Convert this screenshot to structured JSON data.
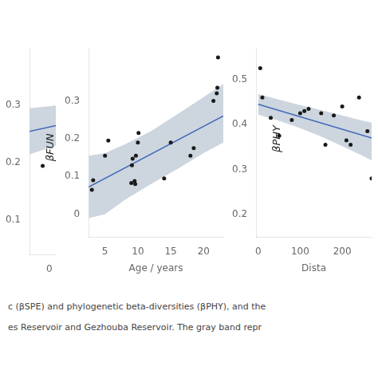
{
  "chart_data": [
    {
      "type": "scatter",
      "xlim": [
        -1.5,
        0.5
      ],
      "ylim": [
        0.04,
        0.4
      ],
      "xticks": [
        0
      ],
      "yticks": [
        0.1,
        0.2,
        0.3
      ],
      "grid": false,
      "annotations": [
        "βFUN"
      ],
      "series": [
        {
          "type": "scatter",
          "color": "#1a1a1a",
          "x": [
            -0.5
          ],
          "values": [
            0.195
          ]
        },
        {
          "type": "line",
          "color": "#4169b8",
          "x": [
            -1.5,
            0.5
          ],
          "values": [
            0.255,
            0.265
          ]
        },
        {
          "type": "band",
          "color": "#c8d2dc",
          "x": [
            -1.5,
            0.5
          ],
          "lower": [
            0.215,
            0.23
          ],
          "upper": [
            0.295,
            0.3
          ]
        }
      ]
    },
    {
      "type": "scatter",
      "xlabel": "Age / years",
      "xlim": [
        2.5,
        23
      ],
      "ylim": [
        -0.06,
        0.44
      ],
      "xticks": [
        5,
        10,
        15,
        20
      ],
      "yticks": [
        0,
        0.1,
        0.2,
        0.3
      ],
      "grid": false,
      "series": [
        {
          "type": "scatter",
          "color": "#1a1a1a",
          "x": [
            3.0,
            3.2,
            5.0,
            5.5,
            9.0,
            9.1,
            9.2,
            9.5,
            9.6,
            9.7,
            10.0,
            10.1,
            14.0,
            15.0,
            18.0,
            18.5,
            21.5,
            22.0,
            22.1,
            22.2
          ],
          "values": [
            0.065,
            0.09,
            0.155,
            0.195,
            0.083,
            0.13,
            0.147,
            0.088,
            0.08,
            0.155,
            0.19,
            0.215,
            0.095,
            0.19,
            0.155,
            0.175,
            0.3,
            0.32,
            0.335,
            0.415
          ]
        },
        {
          "type": "line",
          "color": "#4169b8",
          "x": [
            2.5,
            23
          ],
          "values": [
            0.072,
            0.26
          ]
        },
        {
          "type": "band",
          "color": "#c8d2dc",
          "x": [
            2.5,
            5,
            8,
            12,
            16,
            20,
            23
          ],
          "lower": [
            -0.01,
            0.0,
            0.038,
            0.08,
            0.12,
            0.162,
            0.19
          ],
          "upper": [
            0.155,
            0.162,
            0.185,
            0.22,
            0.265,
            0.31,
            0.345
          ]
        }
      ]
    },
    {
      "type": "scatter",
      "xlabel": "Dista",
      "xlim": [
        -5,
        270
      ],
      "ylim": [
        0.15,
        0.57
      ],
      "xticks": [
        0,
        100,
        200
      ],
      "yticks": [
        0.2,
        0.3,
        0.4,
        0.5
      ],
      "grid": false,
      "annotations": [
        "βPHY"
      ],
      "series": [
        {
          "type": "scatter",
          "color": "#1a1a1a",
          "x": [
            5,
            10,
            30,
            50,
            80,
            100,
            110,
            120,
            150,
            160,
            180,
            200,
            210,
            220,
            240,
            260,
            270
          ],
          "values": [
            0.525,
            0.46,
            0.415,
            0.375,
            0.41,
            0.425,
            0.43,
            0.435,
            0.425,
            0.355,
            0.42,
            0.44,
            0.365,
            0.355,
            0.46,
            0.385,
            0.28
          ]
        },
        {
          "type": "line",
          "color": "#4169b8",
          "x": [
            0,
            270
          ],
          "values": [
            0.445,
            0.37
          ]
        },
        {
          "type": "band",
          "color": "#c8d2dc",
          "x": [
            0,
            50,
            100,
            150,
            200,
            250,
            270
          ],
          "lower": [
            0.422,
            0.408,
            0.392,
            0.373,
            0.352,
            0.33,
            0.32
          ],
          "upper": [
            0.468,
            0.455,
            0.443,
            0.432,
            0.42,
            0.408,
            0.404
          ]
        }
      ]
    }
  ],
  "annotations": [
    "c (βSPE) and phylogenetic beta-diversities (βPHY), and the",
    "es Reservoir and Gezhouba Reservoir. The gray band repr"
  ]
}
